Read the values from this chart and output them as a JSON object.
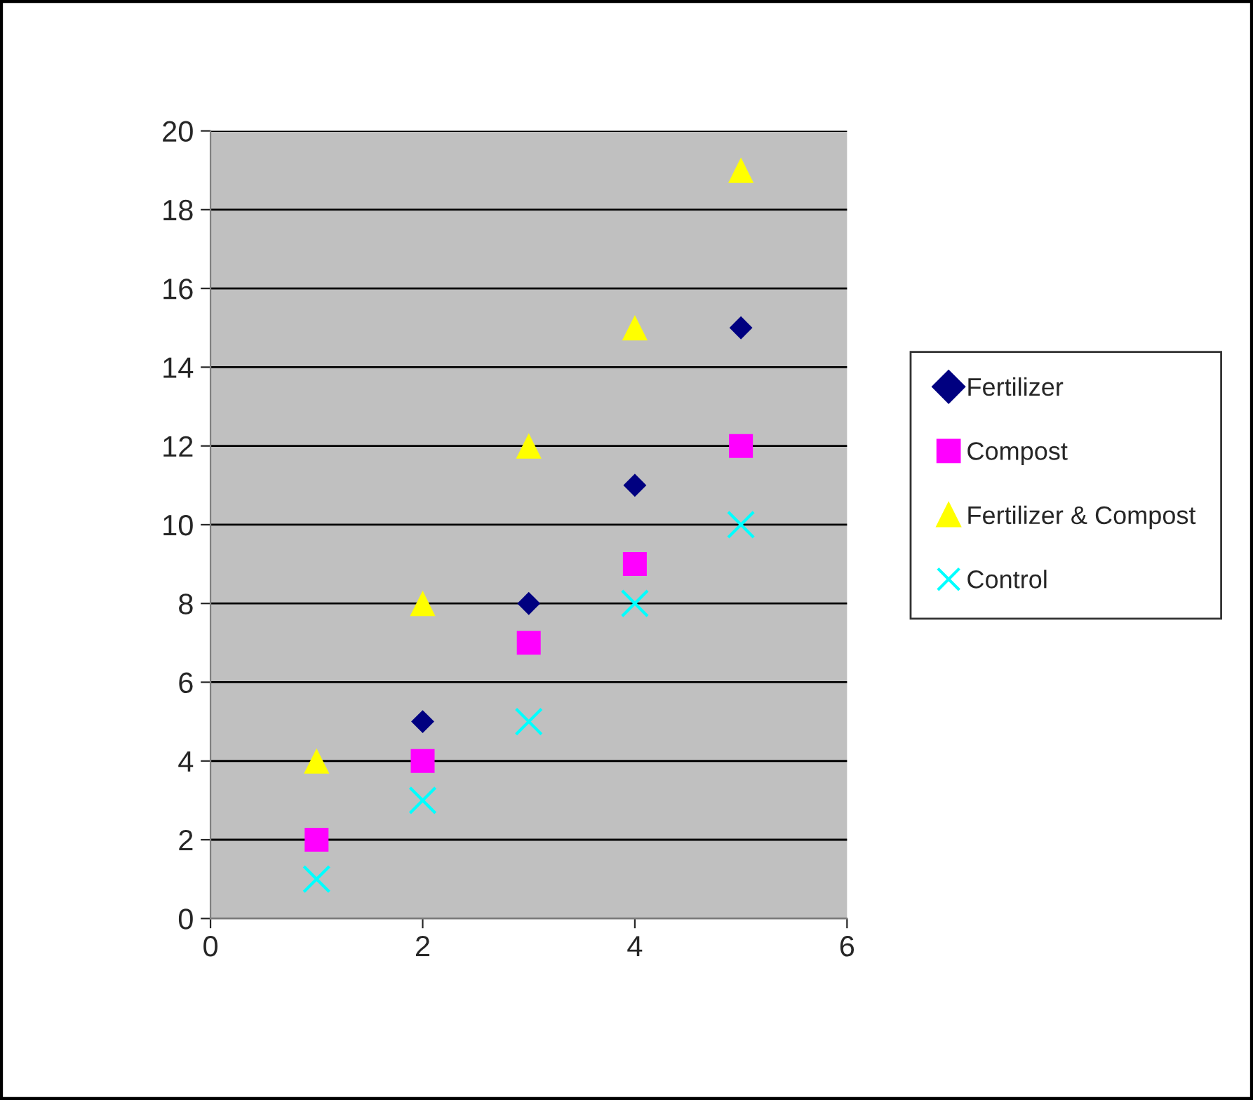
{
  "chart_data": {
    "type": "scatter",
    "x": [
      1,
      2,
      3,
      4,
      5
    ],
    "series": [
      {
        "name": "Fertilizer",
        "color": "#000080",
        "marker": "diamond",
        "values": [
          null,
          5,
          8,
          11,
          15
        ]
      },
      {
        "name": "Compost",
        "color": "#ff00ff",
        "marker": "square",
        "values": [
          2,
          4,
          7,
          9,
          12
        ]
      },
      {
        "name": "Fertilizer & Compost",
        "color": "#ffff00",
        "marker": "triangle",
        "values": [
          4,
          8,
          12,
          15,
          19
        ]
      },
      {
        "name": "Control",
        "color": "#00ffff",
        "marker": "cross",
        "values": [
          1,
          3,
          5,
          8,
          10
        ]
      }
    ],
    "xlim": [
      0,
      6
    ],
    "xticks": [
      0,
      2,
      4,
      6
    ],
    "ylim": [
      0,
      20
    ],
    "yticks": [
      0,
      2,
      4,
      6,
      8,
      10,
      12,
      14,
      16,
      18,
      20
    ],
    "grid": "y",
    "legend": "right"
  }
}
